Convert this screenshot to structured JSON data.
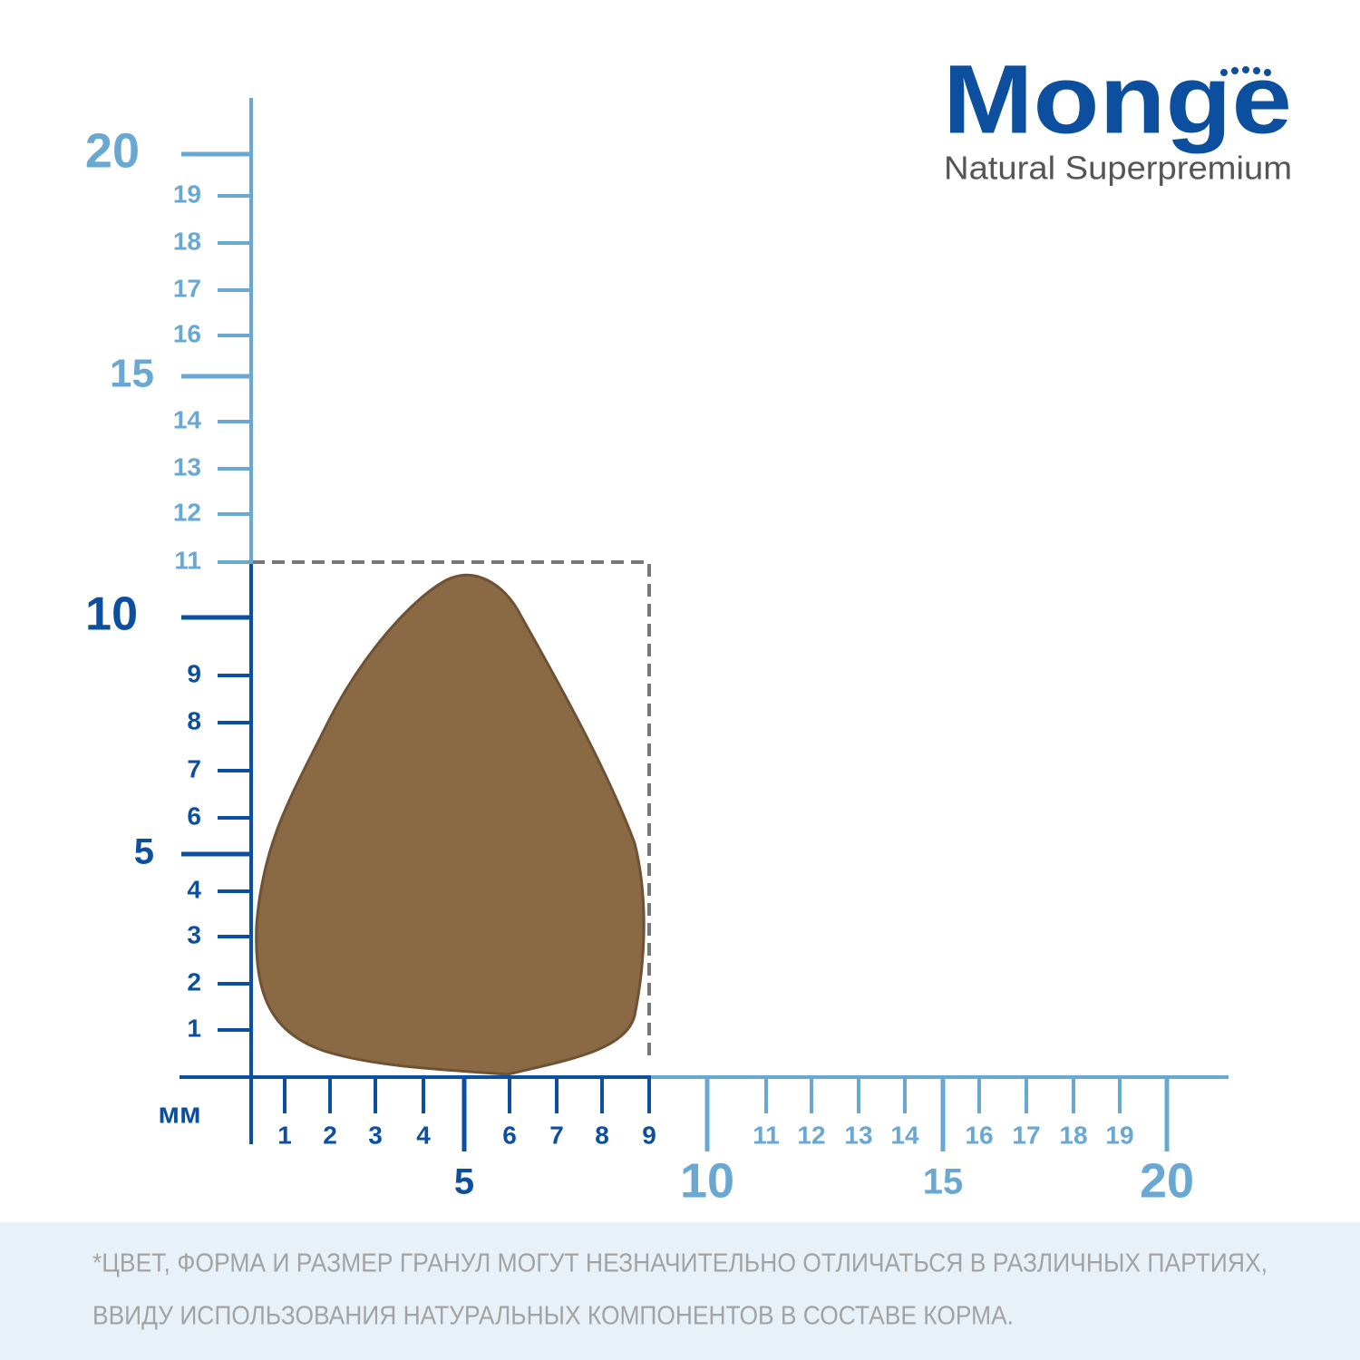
{
  "logo": {
    "brand": "Monge",
    "tagline": "Natural Superpremium"
  },
  "ruler": {
    "unit": "мм",
    "vertical": {
      "minor": [
        "1",
        "2",
        "3",
        "4",
        "6",
        "7",
        "8",
        "9",
        "11",
        "12",
        "13",
        "14",
        "16",
        "17",
        "18",
        "19"
      ],
      "major": [
        "5",
        "10",
        "15",
        "20"
      ]
    },
    "horizontal": {
      "minor": [
        "1",
        "2",
        "3",
        "4",
        "6",
        "7",
        "8",
        "9",
        "11",
        "12",
        "13",
        "14",
        "16",
        "17",
        "18",
        "19"
      ],
      "major": [
        "5",
        "10",
        "15",
        "20"
      ]
    }
  },
  "footnote": [
    "*ЦВЕТ, ФОРМА И РАЗМЕР ГРАНУЛ МОГУТ НЕЗНАЧИТЕЛЬНО ОТЛИЧАТЬСЯ В РАЗЛИЧНЫХ ПАРТИЯХ,",
    "ВВИДУ ИСПОЛЬЗОВАНИЯ НАТУРАЛЬНЫХ КОМПОНЕНТОВ В СОСТАВЕ КОРМА."
  ]
}
